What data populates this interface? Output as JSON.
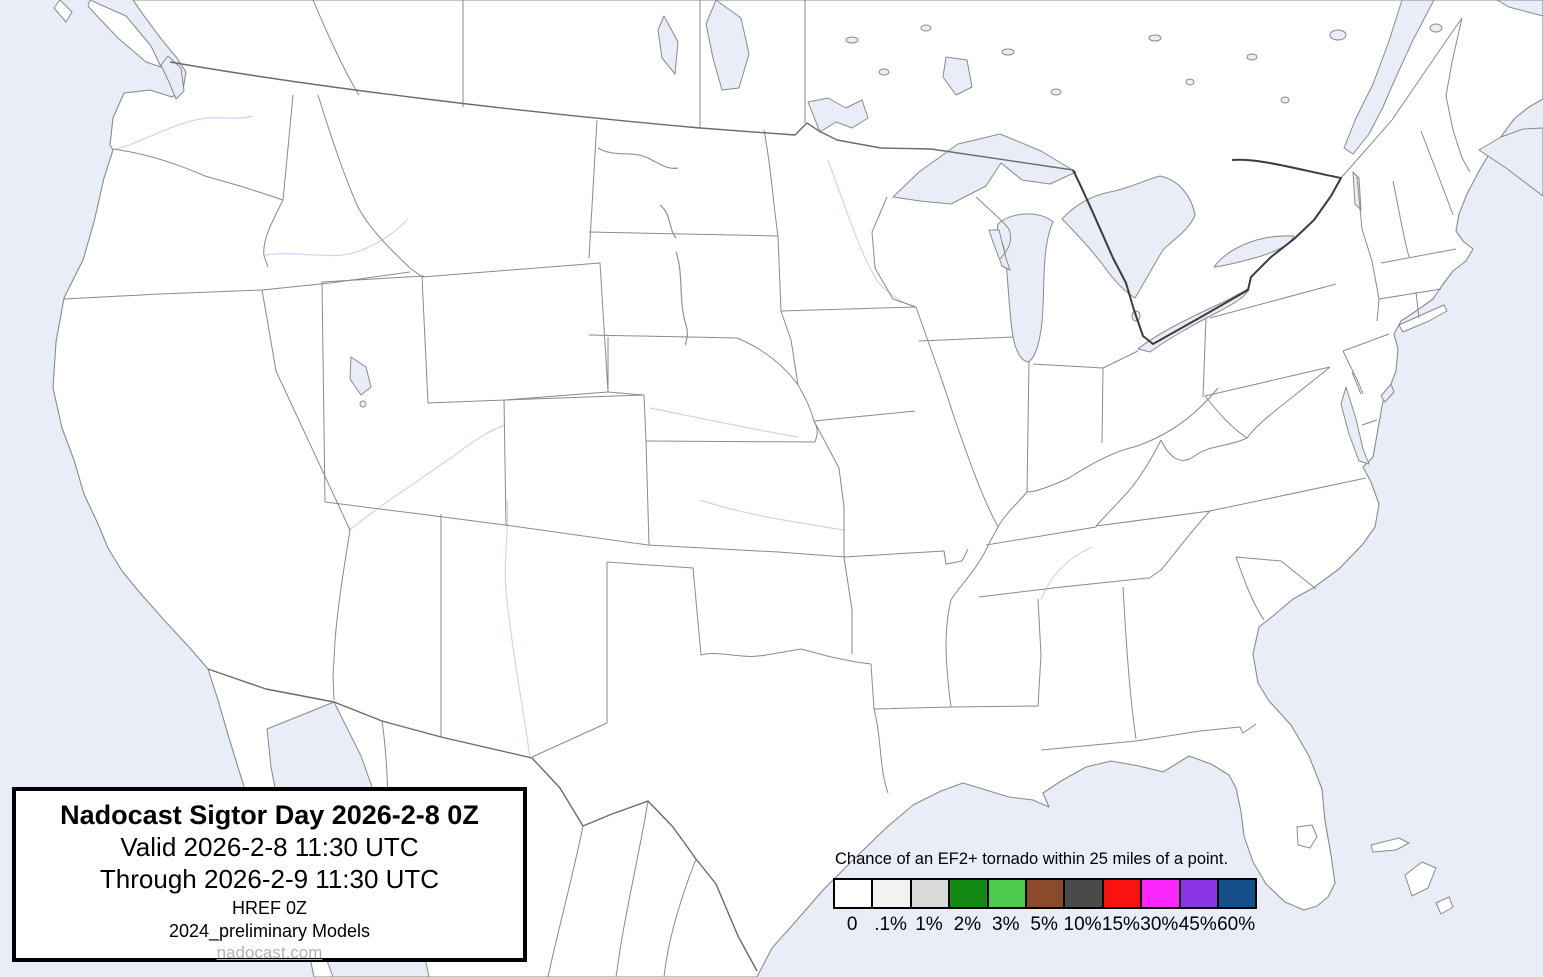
{
  "title_box": {
    "title": "Nadocast Sigtor Day 2026-2-8 0Z",
    "valid_line": "Valid 2026-2-8 11:30 UTC",
    "through_line": "Through 2026-2-9 11:30 UTC",
    "model_line": "HREF 0Z",
    "models_note": "2024_preliminary Models",
    "link": "nadocast.com"
  },
  "legend": {
    "title": "Chance of an EF2+ tornado within 25 miles of a point.",
    "bins": [
      {
        "label": "0",
        "color": "#ffffff"
      },
      {
        "label": ".1%",
        "color": "#f2f2f0"
      },
      {
        "label": "1%",
        "color": "#d9d9d7"
      },
      {
        "label": "2%",
        "color": "#148a14"
      },
      {
        "label": "3%",
        "color": "#4ccb4e"
      },
      {
        "label": "5%",
        "color": "#8c4a2c"
      },
      {
        "label": "10%",
        "color": "#4a4a4a"
      },
      {
        "label": "15%",
        "color": "#f9120f"
      },
      {
        "label": "30%",
        "color": "#fb26fb"
      },
      {
        "label": "45%",
        "color": "#8b36e6"
      },
      {
        "label": "60%",
        "color": "#15508c"
      }
    ]
  },
  "colors": {
    "water": "#e9edf8",
    "land": "#ffffff",
    "shoreline": "#8a8a8a",
    "state_border": "#8a8a8a",
    "national_border": "#3c3c3c"
  }
}
